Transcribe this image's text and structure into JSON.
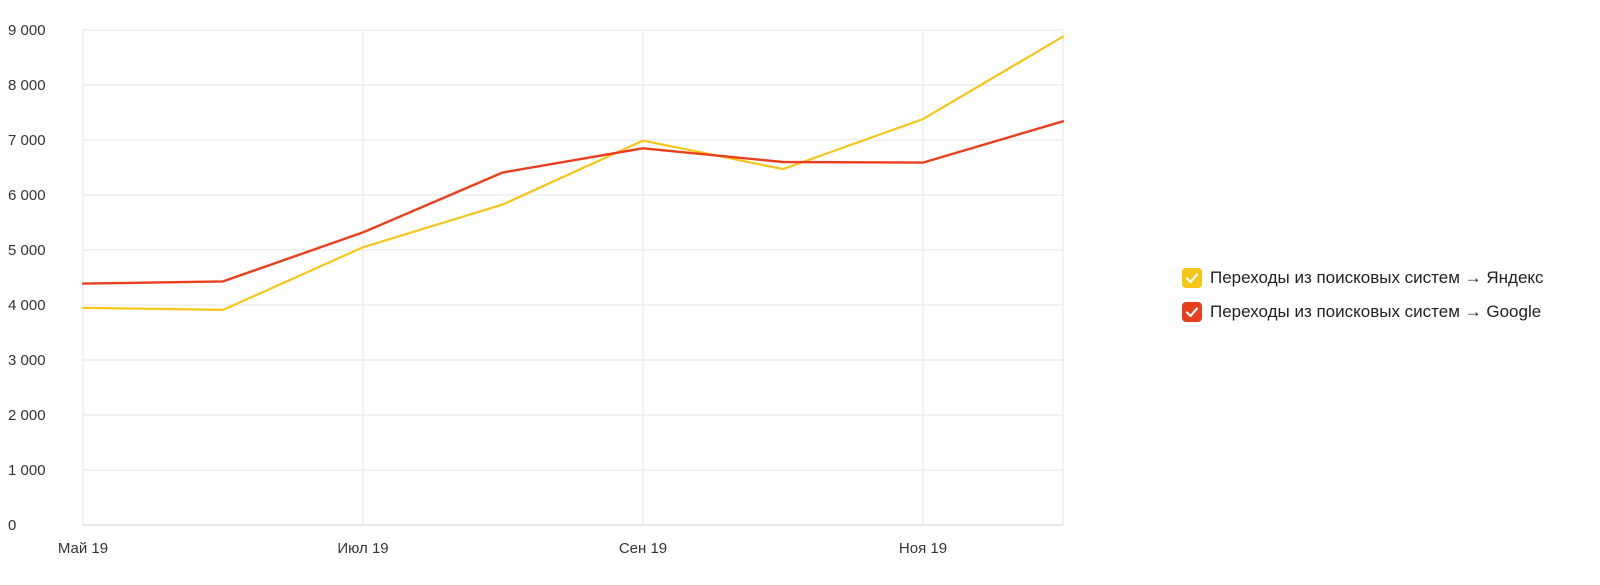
{
  "chart_data": {
    "type": "line",
    "categories": [
      "",
      "",
      "",
      "",
      "",
      "",
      "",
      ""
    ],
    "x_tick_labels": [
      "Май 19",
      "Июл 19",
      "Сен 19",
      "Ноя 19"
    ],
    "x_tick_indices": [
      0,
      2,
      4,
      6
    ],
    "y_tick_labels": [
      "0",
      "1 000",
      "2 000",
      "3 000",
      "4 000",
      "5 000",
      "6 000",
      "7 000",
      "8 000",
      "9 000"
    ],
    "y_ticks": [
      0,
      1000,
      2000,
      3000,
      4000,
      5000,
      6000,
      7000,
      8000,
      9000
    ],
    "ylim": [
      0,
      9000
    ],
    "grid": true,
    "legend_position": "right",
    "series": [
      {
        "name": "Переходы из поисковых систем → Яндекс",
        "color": "#f5c518",
        "values": [
          3950,
          3910,
          5050,
          5830,
          6990,
          6470,
          7380,
          8880
        ]
      },
      {
        "name": "Переходы из поисковых систем → Google",
        "color": "#e8401c",
        "values": [
          4390,
          4430,
          5320,
          6410,
          6850,
          6600,
          6590,
          7340
        ]
      }
    ]
  }
}
